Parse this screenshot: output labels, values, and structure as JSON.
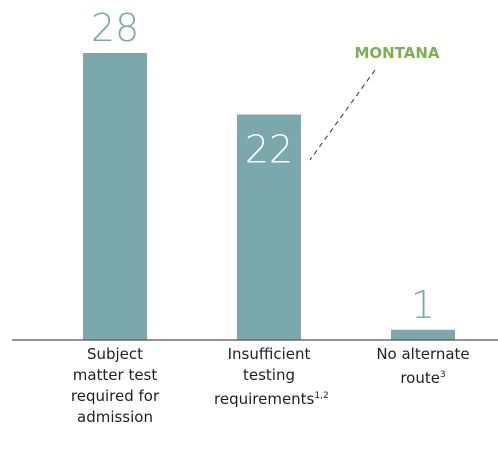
{
  "chart_data": {
    "type": "bar",
    "categories": [
      "Subject matter test required for admission",
      "Insufficient testing requirements",
      "No alternate route"
    ],
    "footnotes": [
      null,
      "1,2",
      "3"
    ],
    "values": [
      28,
      22,
      1
    ],
    "label_inside": [
      false,
      true,
      false
    ],
    "color": "#7ba8ad",
    "annotation": {
      "text": "MONTANA",
      "color": "#7ab24e",
      "category": 1
    }
  }
}
